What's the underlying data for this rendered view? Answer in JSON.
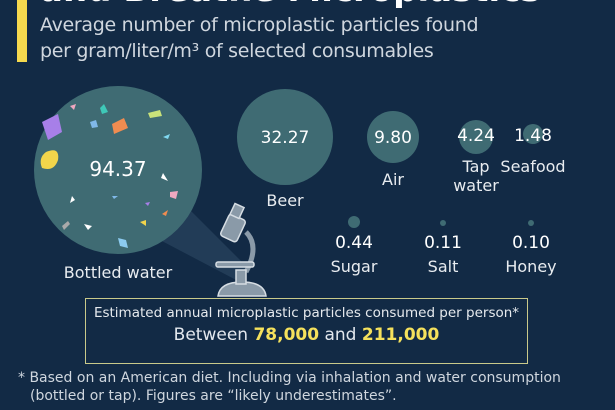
{
  "title": "and Breathe Microplastics",
  "subtitle_line1": "Average number of microplastic particles found",
  "subtitle_line2": "per gram/liter/m³ of selected consumables",
  "colors": {
    "background": "#122a45",
    "bubble": "#3f6b73",
    "accent": "#f5d94e",
    "highlight": "#f5e15c"
  },
  "chart_data": {
    "type": "bubble",
    "items": [
      {
        "label": "Bottled water",
        "value": 94.37,
        "value_label": "94.37"
      },
      {
        "label": "Beer",
        "value": 32.27,
        "value_label": "32.27"
      },
      {
        "label": "Air",
        "value": 9.8,
        "value_label": "9.80"
      },
      {
        "label": "Tap water",
        "value": 4.24,
        "value_label": "4.24"
      },
      {
        "label": "Seafood",
        "value": 1.48,
        "value_label": "1.48"
      },
      {
        "label": "Sugar",
        "value": 0.44,
        "value_label": "0.44"
      },
      {
        "label": "Salt",
        "value": 0.11,
        "value_label": "0.11"
      },
      {
        "label": "Honey",
        "value": 0.1,
        "value_label": "0.10"
      }
    ]
  },
  "icons": [
    "microscope-icon",
    "microplastic-fragments"
  ],
  "summary": {
    "line1": "Estimated annual microplastic particles consumed per person*",
    "between": "Between",
    "low": "78,000",
    "and": "and",
    "high": "211,000"
  },
  "footnote_line1": "* Based on an American diet. Including via inhalation and water consumption",
  "footnote_line2": "(bottled or tap). Figures are “likely underestimates”."
}
